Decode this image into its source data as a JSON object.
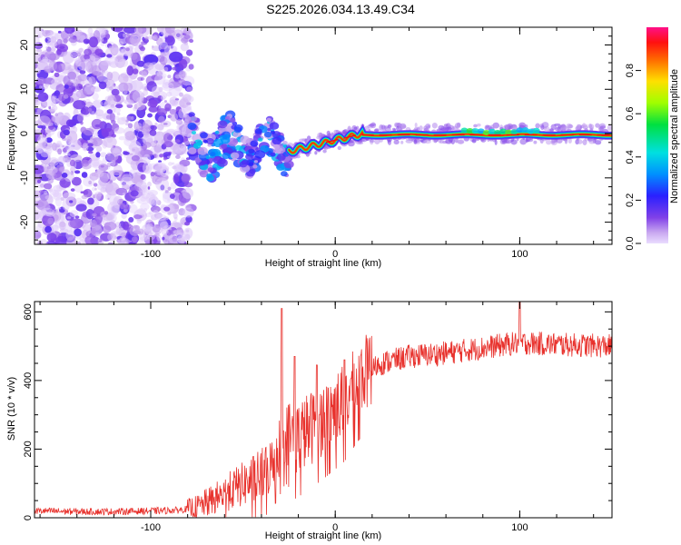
{
  "title": "S225.2026.034.13.49.C34",
  "chart_data": [
    {
      "type": "heatmap",
      "xlabel": "Height of straight line (km)",
      "ylabel": "Frequency (Hz)",
      "xlim": [
        -163,
        150
      ],
      "ylim": [
        -25,
        24
      ],
      "xticks": [
        -100,
        0,
        100
      ],
      "yticks": [
        -20,
        -10,
        0,
        10,
        20
      ],
      "colorbar": {
        "label": "Normalized spectral amplitude",
        "range": [
          0,
          1
        ],
        "ticks": [
          0.0,
          0.2,
          0.4,
          0.6,
          0.8
        ],
        "tick_labels": [
          "0.0",
          "0.2",
          "0.4",
          "0.6",
          "0.8"
        ]
      },
      "regions": [
        {
          "x": [
            -163,
            -78
          ],
          "freq": [
            -25,
            24
          ],
          "amplitude": 0.1,
          "pattern": "noise"
        },
        {
          "x": [
            -78,
            -25
          ],
          "freq": [
            -8,
            2
          ],
          "amplitude": 0.3,
          "pattern": "scattered"
        },
        {
          "x": [
            -25,
            15
          ],
          "freq": [
            -4,
            0
          ],
          "amplitude": 0.6,
          "pattern": "rising line"
        },
        {
          "x": [
            15,
            150
          ],
          "freq": [
            -1,
            1
          ],
          "amplitude": 0.95,
          "pattern": "steady line"
        }
      ]
    },
    {
      "type": "line",
      "xlabel": "Height of straight line (km)",
      "ylabel": "SNR (10 * v/v)",
      "xlim": [
        -163,
        150
      ],
      "ylim": [
        0,
        630
      ],
      "xticks": [
        -100,
        0,
        100
      ],
      "yticks": [
        0,
        200,
        400,
        600
      ],
      "series": [
        {
          "name": "SNR",
          "color": "#e8322d",
          "x": [
            -163,
            -140,
            -120,
            -100,
            -85,
            -75,
            -65,
            -55,
            -45,
            -40,
            -35,
            -30,
            -27,
            -22,
            -15,
            -5,
            5,
            15,
            25,
            40,
            60,
            80,
            100,
            120,
            150
          ],
          "values": [
            20,
            18,
            18,
            20,
            22,
            30,
            55,
            85,
            110,
            125,
            150,
            210,
            250,
            230,
            255,
            295,
            340,
            420,
            450,
            470,
            480,
            495,
            510,
            505,
            500
          ]
        }
      ],
      "spikes": [
        {
          "x": -29,
          "value": 610
        },
        {
          "x": -22,
          "value": 470
        },
        {
          "x": -10,
          "value": 445
        },
        {
          "x": 5,
          "value": 460
        },
        {
          "x": 100,
          "value": 640
        }
      ]
    }
  ]
}
